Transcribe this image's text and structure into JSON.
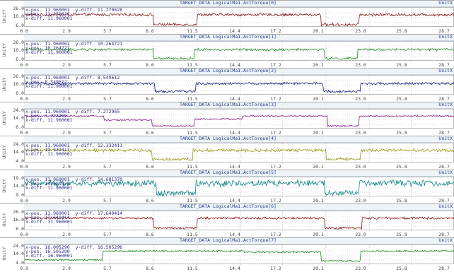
{
  "y_axis_label": "UnitY",
  "x_ticks": [
    "0.0",
    "2.9",
    "5.7",
    "8.6",
    "11.5",
    "14.4",
    "17.2",
    "20.1",
    "23.0",
    "25.8",
    "28.7"
  ],
  "panels": [
    {
      "title": "TARGET_DATA   LogicalMa1.ActTorque[0]",
      "unit_right": "UnitX",
      "color": "#8b1a1a",
      "y_ticks": [
        "26.0",
        "16.0",
        "6.0"
      ],
      "ylim": [
        6,
        26
      ],
      "readout": {
        "x_pos": "x-pos.  11.960001",
        "y_diff": "y-diff. 11.270628",
        "y_pos": "y-pos.  11.270628",
        "x_diff": "x-diff. 11.960001"
      },
      "base_low": 9,
      "base_high": 19,
      "noise": 1.2,
      "segments": [
        [
          0,
          5.0,
          1
        ],
        [
          5.0,
          8.6,
          1
        ],
        [
          8.6,
          11.5,
          0
        ],
        [
          11.5,
          14.8,
          1
        ],
        [
          14.8,
          19.8,
          1
        ],
        [
          19.8,
          22.3,
          0
        ],
        [
          22.3,
          28.7,
          1
        ]
      ]
    },
    {
      "title": "TARGET_DATA   LogicalMa1.ActTorque[1]",
      "unit_right": "UnitX",
      "color": "#1e8a1e",
      "y_ticks": [
        "26.0",
        "16.0",
        "6.0"
      ],
      "ylim": [
        6,
        26
      ],
      "readout": {
        "x_pos": "x-pos.  11.960001",
        "y_diff": "y-diff. 10.264721",
        "y_pos": "y-pos.  10.264721",
        "x_diff": "x-diff. 11.960001"
      },
      "base_low": 9,
      "base_high": 18,
      "noise": 1.0,
      "segments": [
        [
          0,
          5.0,
          1
        ],
        [
          5.0,
          8.6,
          1
        ],
        [
          8.6,
          11.3,
          0
        ],
        [
          11.3,
          14.3,
          1
        ],
        [
          14.3,
          20.0,
          1
        ],
        [
          20.0,
          22.2,
          0
        ],
        [
          22.2,
          28.7,
          1
        ]
      ]
    },
    {
      "title": "TARGET_DATA   LogicalMa1.ActTorque[2]",
      "unit_right": "UnitX",
      "color": "#1a237e",
      "y_ticks": [
        "26.0",
        "16.0",
        "6.0"
      ],
      "ylim": [
        6,
        26
      ],
      "readout": {
        "x_pos": "x-pos.  11.960001",
        "y_diff": "y-diff. 8.549612",
        "y_pos": "y-pos.  8.549612",
        "x_diff": "x-diff. 11.960001"
      },
      "base_low": 10,
      "base_high": 18,
      "noise": 1.1,
      "segments": [
        [
          0,
          5.2,
          1
        ],
        [
          5.2,
          8.7,
          1
        ],
        [
          8.7,
          11.4,
          0
        ],
        [
          11.4,
          14.6,
          1
        ],
        [
          14.6,
          19.9,
          1
        ],
        [
          19.9,
          22.4,
          0
        ],
        [
          22.4,
          28.7,
          1
        ]
      ]
    },
    {
      "title": "TARGET_DATA   LogicalMa1.ActTorque[3]",
      "unit_right": "UnitX",
      "color": "#8b1a8b",
      "y_ticks": [
        "24.0",
        "14.0",
        "6.0"
      ],
      "ylim": [
        6,
        24
      ],
      "readout": {
        "x_pos": "x-pos.  11.960001",
        "y_diff": "y-diff. 7.272965",
        "y_pos": "y-pos.  7.272965",
        "x_diff": "x-diff. 11.960001"
      },
      "base_low": 9,
      "base_high": 18,
      "noise": 0.6,
      "segments": [
        [
          0,
          5.3,
          1
        ],
        [
          5.3,
          8.5,
          0.6
        ],
        [
          8.5,
          11.3,
          0
        ],
        [
          11.3,
          14.5,
          0.7
        ],
        [
          14.5,
          20.2,
          1
        ],
        [
          20.2,
          22.3,
          0
        ],
        [
          22.3,
          28.7,
          1
        ]
      ]
    },
    {
      "title": "TARGET_DATA   LogicalMa1.ActTorque[4]",
      "unit_right": "UnitX",
      "color": "#9a9a1a",
      "y_ticks": [
        "24.0",
        "14.0",
        "4.0"
      ],
      "ylim": [
        4,
        24
      ],
      "readout": {
        "x_pos": "x-pos.  11.960001",
        "y_diff": "y-diff. 12.332411",
        "y_pos": "y-pos.  12.332411",
        "x_diff": "x-diff. 11.960001"
      },
      "base_low": 8,
      "base_high": 17,
      "noise": 1.3,
      "segments": [
        [
          0,
          5.0,
          1
        ],
        [
          5.0,
          8.5,
          1
        ],
        [
          8.5,
          11.2,
          0
        ],
        [
          11.2,
          14.5,
          1
        ],
        [
          14.5,
          20.1,
          1
        ],
        [
          20.1,
          22.4,
          0
        ],
        [
          22.4,
          28.7,
          1
        ]
      ]
    },
    {
      "title": "TARGET_DATA   LogicalMa1.ActTorque[5]",
      "unit_right": "UnitX",
      "color": "#1a8a8a",
      "y_ticks": [
        "19.0",
        "14.0",
        "9.0"
      ],
      "ylim": [
        9,
        19
      ],
      "readout": {
        "x_pos": "x-pos.  11.960001",
        "y_diff": "y-diff. 14.681370",
        "y_pos": "y-pos.  14.681370",
        "x_diff": "x-diff. 11.960001"
      },
      "base_low": 11,
      "base_high": 16,
      "noise": 1.4,
      "segments": [
        [
          0,
          5.0,
          1
        ],
        [
          5.0,
          8.8,
          1
        ],
        [
          8.8,
          11.4,
          0
        ],
        [
          11.4,
          14.8,
          1
        ],
        [
          14.8,
          20.0,
          1
        ],
        [
          20.0,
          22.3,
          0
        ],
        [
          22.3,
          28.7,
          1
        ]
      ]
    },
    {
      "title": "TARGET_DATA   LogicalMa1.ActTorque[6]",
      "unit_right": "UnitX",
      "color": "#8b1a1a",
      "y_ticks": [
        "26.0",
        "16.0",
        "6.0"
      ],
      "ylim": [
        6,
        26
      ],
      "readout": {
        "x_pos": "x-pos.  11.960001",
        "y_diff": "y-diff. 17.649414",
        "y_pos": "y-pos.  17.649414",
        "x_diff": "x-diff. 11.960001"
      },
      "base_low": 9,
      "base_high": 19,
      "noise": 1.0,
      "segments": [
        [
          0,
          5.0,
          1
        ],
        [
          5.0,
          8.6,
          1
        ],
        [
          8.6,
          11.5,
          0
        ],
        [
          11.5,
          14.8,
          1
        ],
        [
          14.8,
          20.0,
          1
        ],
        [
          20.0,
          22.5,
          0
        ],
        [
          22.5,
          28.7,
          1
        ]
      ]
    },
    {
      "title": "TARGET_DATA   LogicalMa1.ActTorque[7]",
      "unit_right": "UnitX",
      "color": "#1e8a1e",
      "y_ticks": [
        "24.0",
        "14.0",
        "4.0"
      ],
      "ylim": [
        4,
        24
      ],
      "readout": {
        "x_pos": "x-pos.  16.005290",
        "y_diff": "y-diff. 16.505296",
        "y_pos": "y-pos.  16.505290",
        "x_diff": "x-diff. 16.960001"
      },
      "base_low": 8,
      "base_high": 18,
      "noise": 0.8,
      "segments": [
        [
          0,
          5.2,
          0.1
        ],
        [
          5.2,
          8.4,
          1
        ],
        [
          8.4,
          11.4,
          1
        ],
        [
          11.4,
          14.6,
          1
        ],
        [
          14.6,
          19.8,
          0.9
        ],
        [
          19.8,
          22.4,
          0
        ],
        [
          22.4,
          28.7,
          1
        ]
      ]
    }
  ]
}
